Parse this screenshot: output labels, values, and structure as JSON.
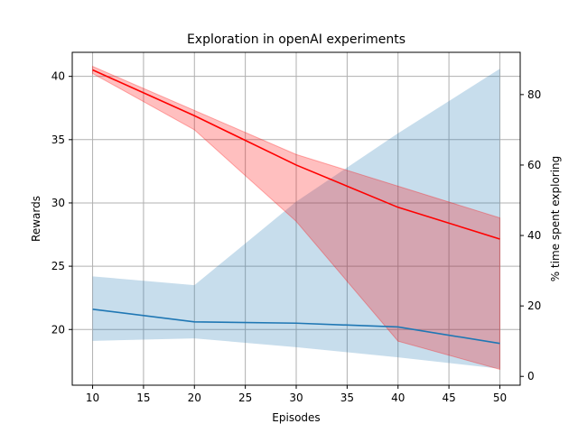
{
  "chart_data": {
    "type": "line",
    "title": "Exploration in openAI experiments",
    "xlabel": "Episodes",
    "ylabel_left": "Rewards",
    "ylabel_right": "% time spent exploring",
    "x": [
      10,
      20,
      30,
      40,
      50
    ],
    "xlim": [
      8,
      52
    ],
    "ylim_left": [
      15.6,
      41.9
    ],
    "ylim_right": [
      -2.5,
      92
    ],
    "x_ticks": [
      10,
      15,
      20,
      25,
      30,
      35,
      40,
      45,
      50
    ],
    "y_left_ticks": [
      20,
      25,
      30,
      35,
      40
    ],
    "y_right_ticks": [
      0,
      20,
      40,
      60,
      80
    ],
    "grid": true,
    "series": [
      {
        "axis": "left",
        "color": "#1f77b4",
        "values": [
          21.6,
          20.6,
          20.5,
          20.2,
          18.9
        ],
        "band_lower": [
          19.1,
          19.3,
          18.6,
          17.8,
          16.9
        ],
        "band_upper": [
          24.2,
          23.5,
          30.1,
          35.5,
          40.6
        ],
        "band_color": "#1f77b4",
        "band_opacity": 0.25
      },
      {
        "axis": "right",
        "color": "#ff0000",
        "values": [
          87.0,
          74.0,
          60.0,
          48.0,
          39.0
        ],
        "band_lower": [
          86.0,
          70.0,
          44.0,
          10.0,
          2.0
        ],
        "band_upper": [
          88.0,
          75.5,
          63.0,
          54.0,
          45.0
        ],
        "band_color": "#ff0000",
        "band_opacity": 0.25
      }
    ]
  }
}
